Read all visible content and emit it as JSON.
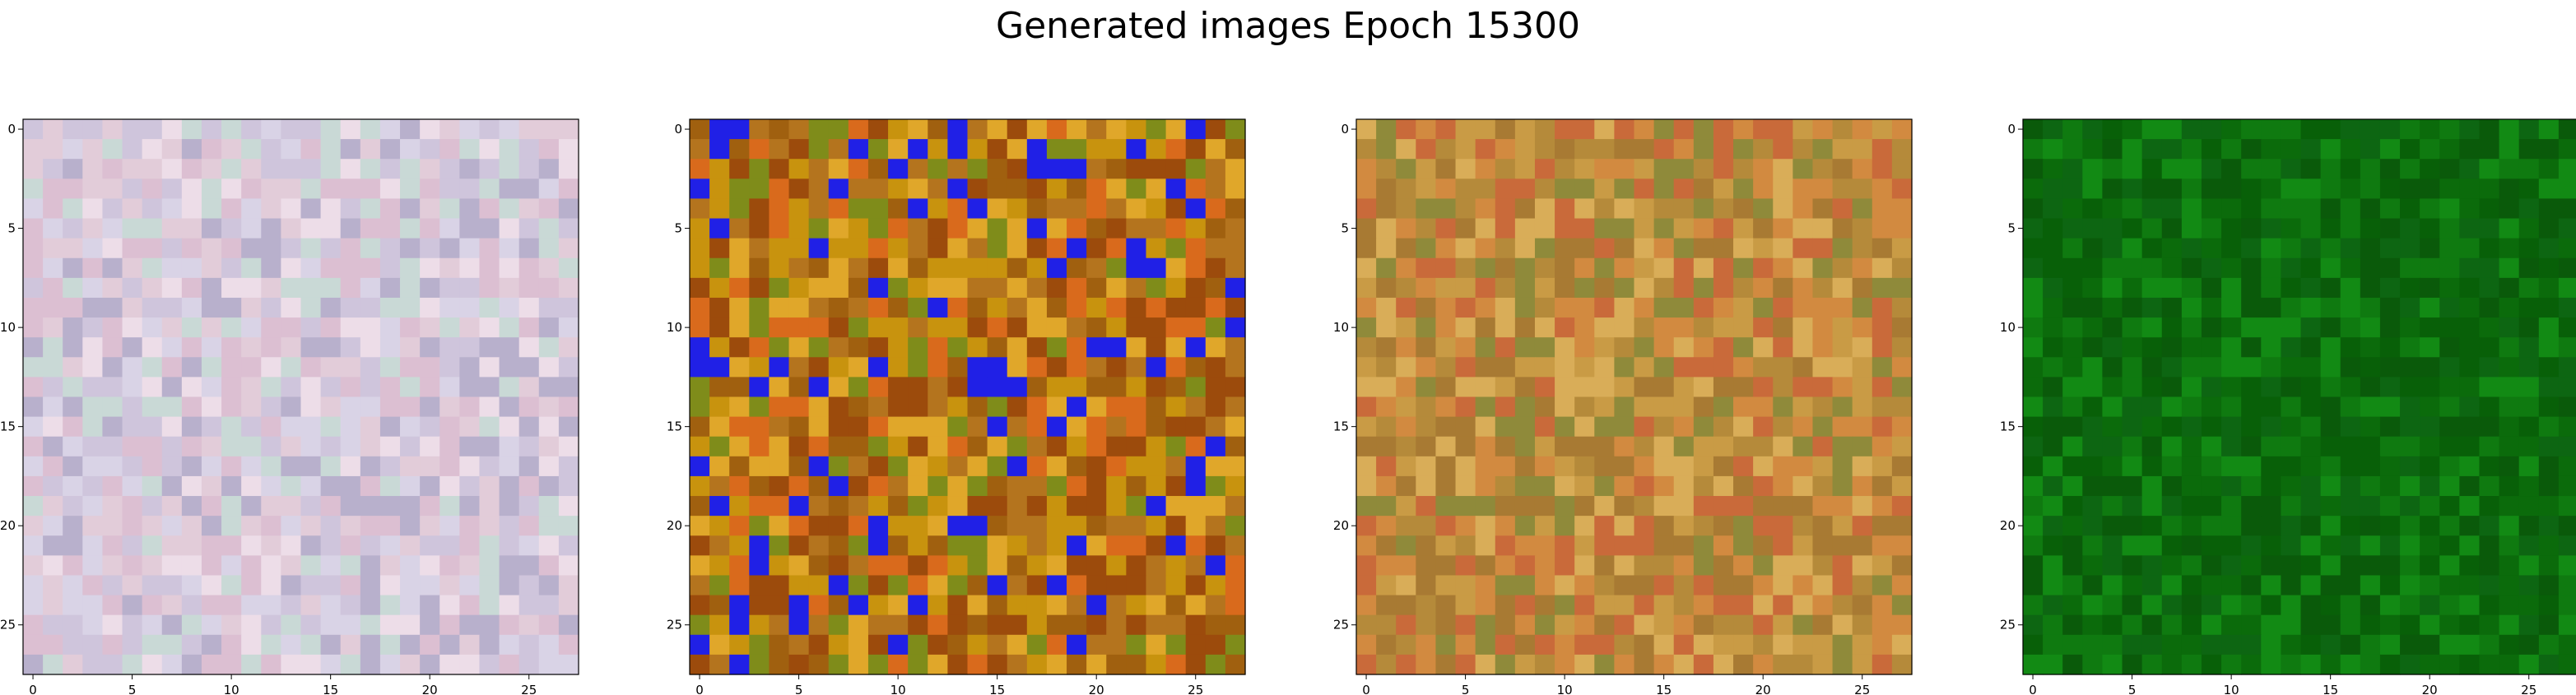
{
  "figure": {
    "title": "Generated images Epoch 15300"
  },
  "chart_data": [
    {
      "type": "heatmap",
      "image_size": 28,
      "palette": "pastel-mixed",
      "colors": [
        "#e2ccd9",
        "#cfc5dc",
        "#d9d3e6",
        "#eddde8",
        "#b8b0cc",
        "#c9d9d6",
        "#dcbfd2"
      ],
      "xticks": [
        0,
        5,
        10,
        15,
        20,
        25
      ],
      "yticks": [
        0,
        5,
        10,
        15,
        20,
        25
      ],
      "xlim": [
        -0.5,
        27.5
      ],
      "ylim": [
        27.5,
        -0.5
      ]
    },
    {
      "type": "heatmap",
      "image_size": 28,
      "palette": "saturated-mixed",
      "colors": [
        "#b4741e",
        "#c8930e",
        "#a0600f",
        "#d96a1c",
        "#7f8c1a",
        "#9c4b0c",
        "#e0a72a",
        "#2020e6"
      ],
      "xticks": [
        0,
        5,
        10,
        15,
        20,
        25
      ],
      "yticks": [
        0,
        5,
        10,
        15,
        20,
        25
      ],
      "xlim": [
        -0.5,
        27.5
      ],
      "ylim": [
        27.5,
        -0.5
      ]
    },
    {
      "type": "heatmap",
      "image_size": 28,
      "palette": "warm-earth",
      "colors": [
        "#c99b45",
        "#b58a3a",
        "#d9ad58",
        "#a87a33",
        "#c96a3a",
        "#8f8a3a",
        "#d28a40"
      ],
      "xticks": [
        0,
        5,
        10,
        15,
        20,
        25
      ],
      "yticks": [
        0,
        5,
        10,
        15,
        20,
        25
      ],
      "xlim": [
        -0.5,
        27.5
      ],
      "ylim": [
        27.5,
        -0.5
      ]
    },
    {
      "type": "heatmap",
      "image_size": 28,
      "palette": "green",
      "colors": [
        "#0b6b0b",
        "#0f7a10",
        "#0a5a0a",
        "#128a14",
        "#0d6612",
        "#086008"
      ],
      "xticks": [
        0,
        5,
        10,
        15,
        20,
        25
      ],
      "yticks": [
        0,
        5,
        10,
        15,
        20,
        25
      ],
      "xlim": [
        -0.5,
        27.5
      ],
      "ylim": [
        27.5,
        -0.5
      ]
    }
  ]
}
